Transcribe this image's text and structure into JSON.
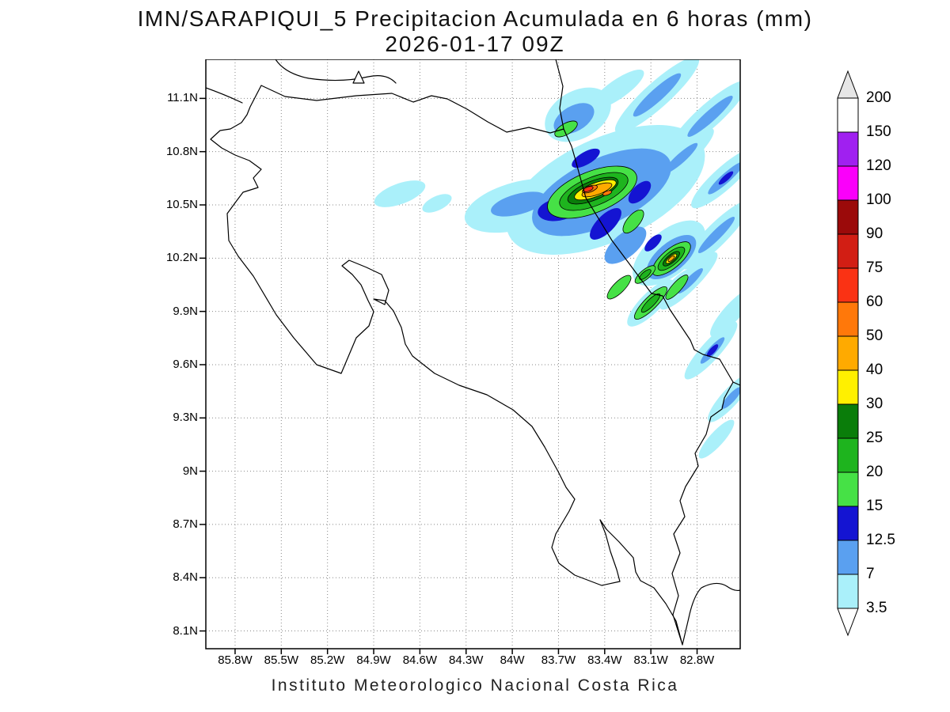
{
  "title": {
    "line1": "IMN/SARAPIQUI_5 Precipitacion Acumulada en 6 horas (mm)",
    "line2": "2026-01-17 09Z"
  },
  "footer": "Instituto Meteorologico Nacional Costa Rica",
  "chart_data": {
    "type": "heatmap",
    "title": "IMN/SARAPIQUI_5 Precipitacion Acumulada en 6 horas (mm)",
    "subtitle": "2026-01-17 09Z",
    "units": "mm",
    "region": "Costa Rica",
    "grid": "dotted",
    "legend_position": "right",
    "x_axis": {
      "label": "Longitude",
      "ticks": [
        "85.8W",
        "85.5W",
        "85.2W",
        "84.9W",
        "84.6W",
        "84.3W",
        "84W",
        "83.7W",
        "83.4W",
        "83.1W",
        "82.8W"
      ],
      "range_deg_w": [
        85.99,
        82.52
      ]
    },
    "y_axis": {
      "label": "Latitude",
      "ticks": [
        "11.1N",
        "10.8N",
        "10.5N",
        "10.2N",
        "9.9N",
        "9.6N",
        "9.3N",
        "9N",
        "8.7N",
        "8.4N",
        "8.1N"
      ],
      "range_deg_n": [
        11.32,
        8.0
      ]
    },
    "colorbar": {
      "boundaries": [
        "200",
        "150",
        "120",
        "100",
        "90",
        "75",
        "60",
        "50",
        "40",
        "30",
        "25",
        "20",
        "15",
        "12.5",
        "7",
        "3.5"
      ],
      "segment_colors_top_to_bottom": [
        "#ffffff",
        "#a020f0",
        "#fa00fa",
        "#9b0a0a",
        "#d21e14",
        "#fa3214",
        "#ff780a",
        "#ffaa00",
        "#fff000",
        "#0a7d0a",
        "#1eb41e",
        "#46e146",
        "#1414d2",
        "#5aa0f0",
        "#aaf0fa"
      ],
      "above_max_color": "#e6e6e6",
      "below_min_color": "#ffffff"
    },
    "features": [
      {
        "description": "Intense convective cell over the northern Caribbean slope (Sarapiqui area)",
        "center_lon_w": 83.5,
        "center_lat_n": 10.55,
        "peak_range_mm": "60-75"
      },
      {
        "description": "Secondary cell southeast of the main core",
        "center_lon_w": 83.0,
        "center_lat_n": 10.2,
        "peak_range_mm": "40-50"
      },
      {
        "description": "NE-SW oriented shower bands over the Caribbean sea and offshore waters",
        "peak_range_mm": "7-15"
      },
      {
        "description": "Weak isolated showers over the central valley / gulf area",
        "peak_range_mm": "3.5-7"
      }
    ]
  },
  "map": {
    "region": "Costa Rica",
    "level_fill_colors": {
      "3.5": "#aaf0fa",
      "7": "#5aa0f0",
      "12.5": "#1414d2",
      "15": "#46e146",
      "20": "#1eb41e",
      "25": "#0a7d0a",
      "30": "#fff000",
      "40": "#ffaa00",
      "50": "#ff780a",
      "60": "#fa3214"
    }
  }
}
